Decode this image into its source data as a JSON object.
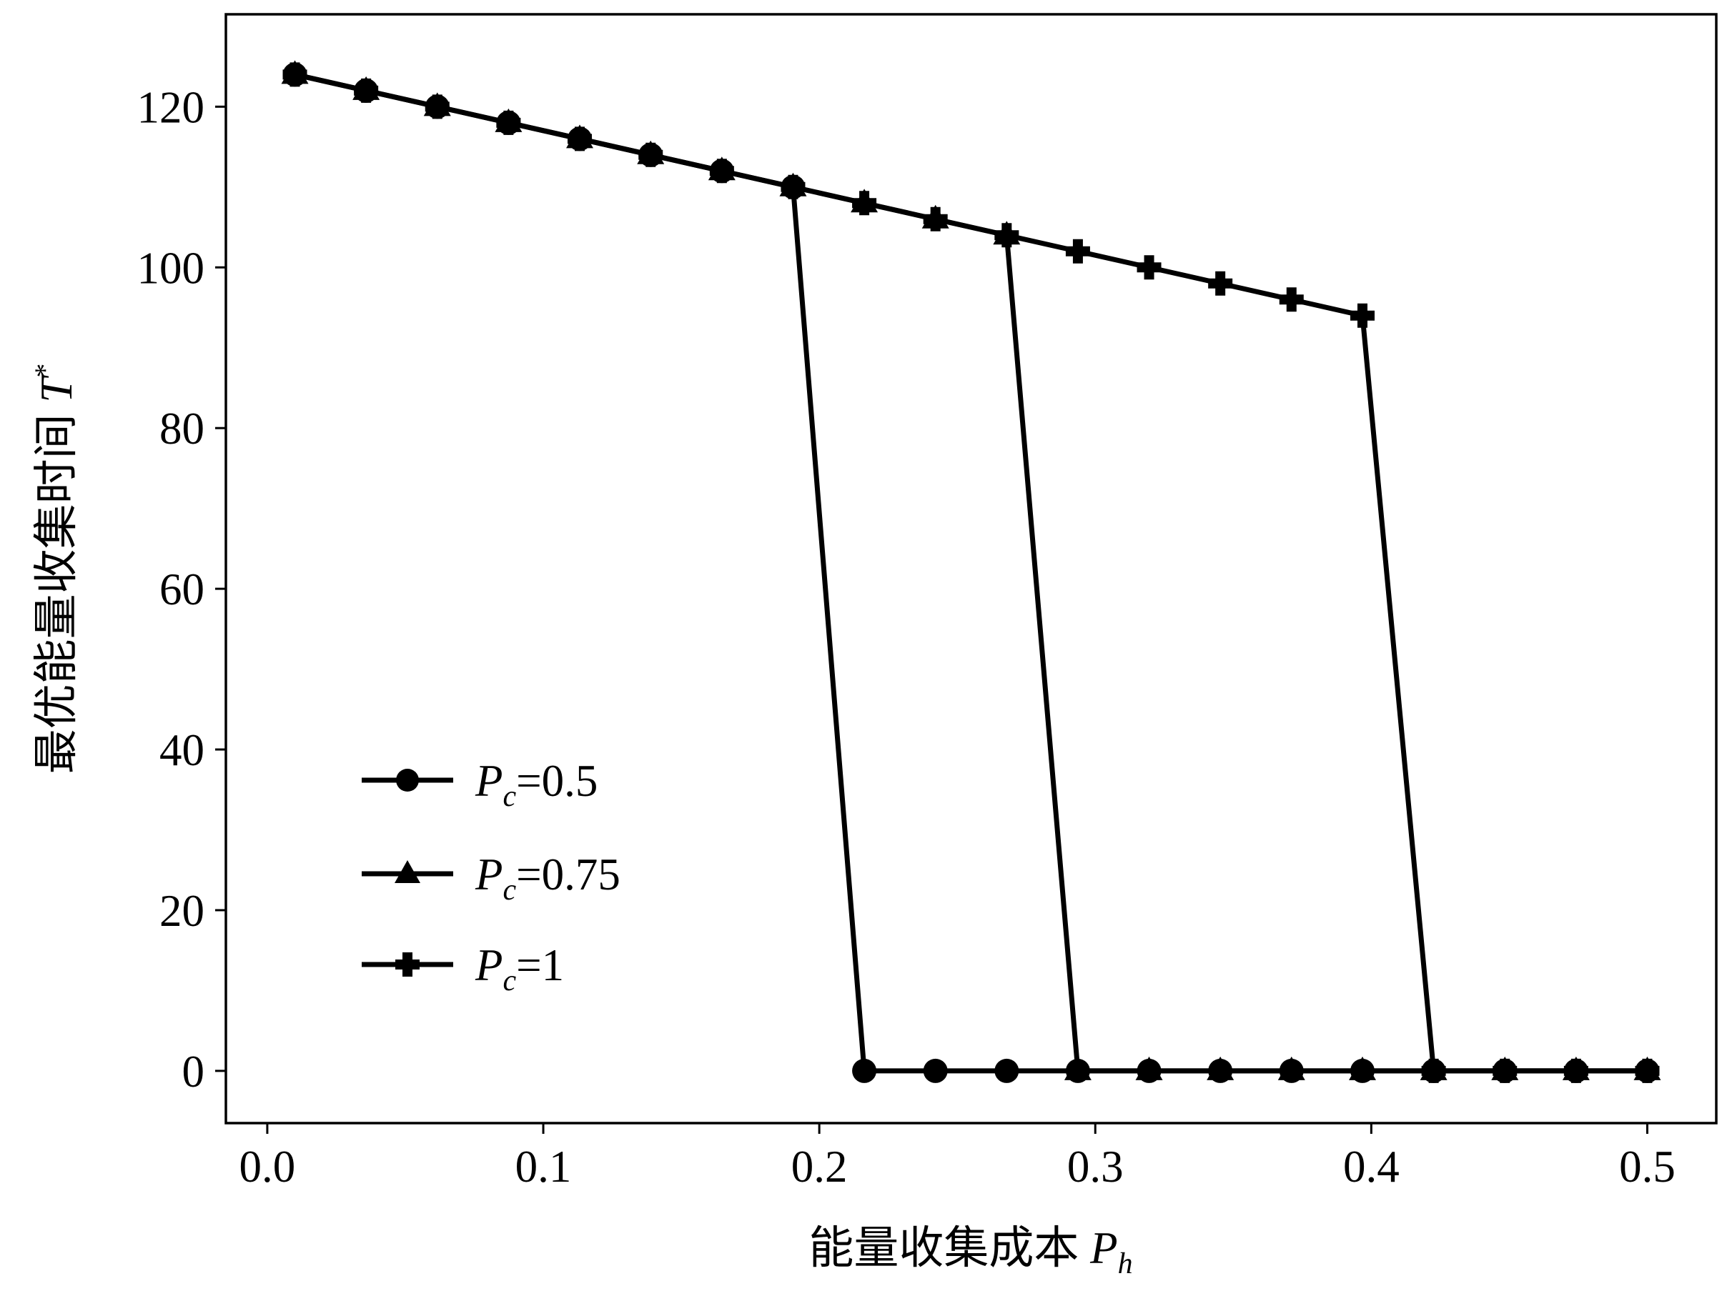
{
  "chart_data": {
    "type": "line",
    "xlabel": {
      "main": "能量收集成本 ",
      "var": "P",
      "sub": "h"
    },
    "ylabel": {
      "main": "最优能量收集时间 ",
      "var": "T",
      "sup": "*"
    },
    "xlim": [
      -0.015,
      0.525
    ],
    "ylim": [
      -6.5,
      131.5
    ],
    "xticks": [
      0.0,
      0.1,
      0.2,
      0.3,
      0.4,
      0.5
    ],
    "xtick_labels": [
      "0.0",
      "0.1",
      "0.2",
      "0.3",
      "0.4",
      "0.5"
    ],
    "yticks": [
      0,
      20,
      40,
      60,
      80,
      100,
      120
    ],
    "ytick_labels": [
      "0",
      "20",
      "40",
      "60",
      "80",
      "100",
      "120"
    ],
    "grid": false,
    "legend_position": "lower-left",
    "x": [
      0.01,
      0.0358,
      0.0616,
      0.0874,
      0.1132,
      0.1389,
      0.1647,
      0.1905,
      0.2163,
      0.2421,
      0.2679,
      0.2937,
      0.3195,
      0.3453,
      0.3711,
      0.3968,
      0.4226,
      0.4484,
      0.4742,
      0.5
    ],
    "series": [
      {
        "name": {
          "var": "P",
          "sub": "c",
          "value": "=0.5"
        },
        "marker": "circle",
        "values": [
          124,
          122,
          120,
          118,
          116,
          114,
          112,
          110,
          0,
          0,
          0,
          0,
          0,
          0,
          0,
          0,
          0,
          0,
          0,
          0
        ]
      },
      {
        "name": {
          "var": "P",
          "sub": "c",
          "value": "=0.75"
        },
        "marker": "triangle",
        "values": [
          124,
          122,
          120,
          118,
          116,
          114,
          112,
          110,
          108,
          106,
          104,
          0,
          0,
          0,
          0,
          0,
          0,
          0,
          0,
          0
        ]
      },
      {
        "name": {
          "var": "P",
          "sub": "c",
          "value": "=1"
        },
        "marker": "plus",
        "values": [
          124,
          122,
          120,
          118,
          116,
          114,
          112,
          110,
          108,
          106,
          104,
          102,
          100,
          98,
          96,
          94,
          0,
          0,
          0,
          0
        ]
      }
    ],
    "color": "#000000"
  }
}
